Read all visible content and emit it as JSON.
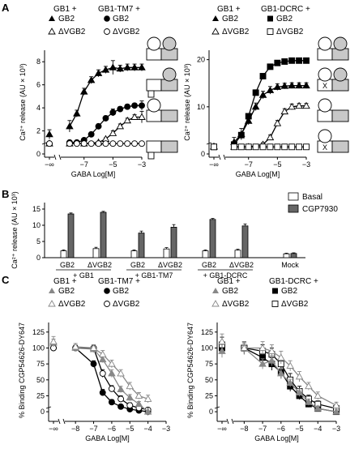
{
  "panels": {
    "A": {
      "letter": "A",
      "legends": [
        {
          "groups": [
            {
              "title": "GB1 +",
              "entries": [
                {
                  "marker": "filled-triangle",
                  "label": "GB2"
                },
                {
                  "marker": "open-triangle",
                  "label": "ΔVGB2"
                }
              ]
            },
            {
              "title": "GB1-TM7 +",
              "entries": [
                {
                  "marker": "filled-circle",
                  "label": "GB2"
                },
                {
                  "marker": "open-circle",
                  "label": "ΔVGB2"
                }
              ]
            }
          ]
        },
        {
          "groups": [
            {
              "title": "GB1 +",
              "entries": [
                {
                  "marker": "filled-triangle",
                  "label": "GB2"
                },
                {
                  "marker": "open-triangle",
                  "label": "ΔVGB2"
                }
              ]
            },
            {
              "title": "GB1-DCRC +",
              "entries": [
                {
                  "marker": "filled-square",
                  "label": "GB2"
                },
                {
                  "marker": "open-square",
                  "label": "ΔVGB2"
                }
              ]
            }
          ]
        }
      ]
    },
    "B": {
      "letter": "B",
      "legend": [
        {
          "label": "Basal",
          "color": "#ffffff"
        },
        {
          "label": "CGP7930",
          "color": "#666666"
        }
      ],
      "group_captions": [
        "+ GB1",
        "+ GB1-TM7",
        "+ GB1-DCRC"
      ]
    },
    "C": {
      "letter": "C",
      "legends": [
        {
          "groups": [
            {
              "title": "GB1 +",
              "entries": [
                {
                  "marker": "gray-filled-triangle",
                  "label": "GB2"
                },
                {
                  "marker": "gray-open-triangle",
                  "label": "ΔVGB2"
                }
              ]
            },
            {
              "title": "GB1-TM7 +",
              "entries": [
                {
                  "marker": "filled-circle",
                  "label": "GB2"
                },
                {
                  "marker": "open-circle",
                  "label": "ΔVGB2"
                }
              ]
            }
          ]
        },
        {
          "groups": [
            {
              "title": "GB1 +",
              "entries": [
                {
                  "marker": "gray-filled-triangle",
                  "label": "GB2"
                },
                {
                  "marker": "gray-open-triangle",
                  "label": "ΔVGB2"
                }
              ]
            },
            {
              "title": "GB1-DCRC +",
              "entries": [
                {
                  "marker": "filled-square",
                  "label": "GB2"
                },
                {
                  "marker": "open-square",
                  "label": "ΔVGB2"
                }
              ]
            }
          ]
        }
      ]
    }
  },
  "chart_data": [
    {
      "id": "A-left",
      "type": "line",
      "ylabel": "Ca²⁺ release (AU × 10³)",
      "xlabel": "GABA Log[M]",
      "x_ticks": [
        "−∞",
        "−7",
        "−5",
        "−3"
      ],
      "y_ticks": [
        0,
        2,
        4,
        6,
        8
      ],
      "xlim": [
        -8.5,
        -3
      ],
      "ylim": [
        0,
        9
      ],
      "grid": false,
      "series": [
        {
          "marker": "filled-triangle",
          "x": [
            -9,
            -8,
            -7.5,
            -7,
            -6.5,
            -6,
            -5.5,
            -5,
            -4.5,
            -4,
            -3.5,
            -3
          ],
          "y": [
            1.7,
            2.4,
            3.5,
            5.4,
            6.4,
            7.0,
            7.3,
            7.5,
            7.4,
            7.5,
            7.5,
            7.5
          ],
          "err": [
            0.4,
            0.5,
            0.3,
            0.3,
            0.3,
            0.3,
            0.3,
            0.6,
            0.3,
            0.3,
            0.3,
            0.3
          ]
        },
        {
          "marker": "filled-circle",
          "x": [
            -9,
            -8,
            -7.5,
            -7,
            -6.5,
            -6,
            -5.5,
            -5,
            -4.5,
            -4,
            -3.5,
            -3
          ],
          "y": [
            0.9,
            1.0,
            1.0,
            1.2,
            1.7,
            2.4,
            3.1,
            3.6,
            3.9,
            4.1,
            4.2,
            4.2
          ],
          "err": [
            0.1,
            0.1,
            0.1,
            0.1,
            0.2,
            0.2,
            0.2,
            0.3,
            0.2,
            0.2,
            0.2,
            0.4
          ]
        },
        {
          "marker": "open-triangle",
          "x": [
            -9,
            -8,
            -7,
            -6,
            -5.5,
            -5,
            -4.5,
            -4,
            -3.5,
            -3
          ],
          "y": [
            0.9,
            0.9,
            0.9,
            1.0,
            1.3,
            1.8,
            2.4,
            2.9,
            3.2,
            3.2
          ],
          "err": [
            0.1,
            0.1,
            0.1,
            0.1,
            0.1,
            0.2,
            0.2,
            0.2,
            0.2,
            0.5
          ]
        },
        {
          "marker": "open-circle",
          "x": [
            -9,
            -8,
            -7.5,
            -7,
            -6.5,
            -6,
            -5.5,
            -5,
            -4.5,
            -4,
            -3.5,
            -3
          ],
          "y": [
            0.9,
            0.9,
            0.9,
            0.9,
            0.9,
            0.9,
            0.9,
            0.9,
            0.9,
            0.9,
            0.9,
            0.9
          ],
          "err": [
            0.1,
            0.1,
            0.1,
            0.1,
            0.1,
            0.1,
            0.1,
            0.1,
            0.1,
            0.1,
            0.1,
            0.1
          ]
        }
      ]
    },
    {
      "id": "A-right",
      "type": "line",
      "ylabel": "Ca²⁺ release (AU × 10³)",
      "xlabel": "GABA Log[M]",
      "x_ticks": [
        "−∞",
        "−7",
        "−5",
        "−3"
      ],
      "y_ticks": [
        0,
        10,
        20
      ],
      "xlim": [
        -8.5,
        -3
      ],
      "ylim": [
        0,
        22
      ],
      "grid": false,
      "series": [
        {
          "marker": "filled-square",
          "x": [
            -9,
            -8,
            -7.5,
            -7,
            -6.5,
            -6,
            -5.5,
            -5,
            -4.5,
            -4,
            -3.5,
            -3
          ],
          "y": [
            1.5,
            2.0,
            4.0,
            8.0,
            13.0,
            16.5,
            18.5,
            19.3,
            19.6,
            19.8,
            19.8,
            19.8
          ],
          "err": [
            0.4,
            0.4,
            0.5,
            0.6,
            0.6,
            0.5,
            0.5,
            0.5,
            0.5,
            0.5,
            0.5,
            0.5
          ]
        },
        {
          "marker": "filled-triangle",
          "x": [
            -9,
            -8,
            -7.5,
            -7,
            -6.5,
            -6,
            -5.5,
            -5,
            -4.5,
            -4,
            -3.5,
            -3
          ],
          "y": [
            1.6,
            2.5,
            4.2,
            7.0,
            10.0,
            12.5,
            13.5,
            14.2,
            14.4,
            14.5,
            14.5,
            14.5
          ],
          "err": [
            0.4,
            1.0,
            1.2,
            0.8,
            0.8,
            0.8,
            0.8,
            0.7,
            0.6,
            0.6,
            0.6,
            0.6
          ]
        },
        {
          "marker": "open-triangle",
          "x": [
            -9,
            -8,
            -7,
            -6,
            -5.5,
            -5,
            -4.5,
            -4,
            -3.5,
            -3
          ],
          "y": [
            1.5,
            1.5,
            1.5,
            2.0,
            3.5,
            6.5,
            9.0,
            10.0,
            10.2,
            10.2
          ],
          "err": [
            0.3,
            0.3,
            0.3,
            0.4,
            0.5,
            0.6,
            0.6,
            0.6,
            0.5,
            0.5
          ]
        },
        {
          "marker": "open-square",
          "x": [
            -9,
            -8,
            -7.5,
            -7,
            -6.5,
            -6,
            -5.5,
            -5,
            -4.5,
            -4,
            -3.5,
            -3
          ],
          "y": [
            1.5,
            1.5,
            1.5,
            1.5,
            1.5,
            1.5,
            1.5,
            1.5,
            1.5,
            1.5,
            1.5,
            1.5
          ],
          "err": [
            0.2,
            0.2,
            0.2,
            0.2,
            0.2,
            0.2,
            0.2,
            0.2,
            0.2,
            0.2,
            0.2,
            0.2
          ]
        }
      ]
    },
    {
      "id": "B",
      "type": "bar",
      "ylabel": "Ca²⁺ release (AU × 10³)",
      "y_ticks": [
        0,
        5,
        10,
        15
      ],
      "ylim": [
        0,
        17
      ],
      "grid": false,
      "categories": [
        "GB2",
        "ΔVGB2",
        "GB2",
        "ΔVGB2",
        "GB2",
        "ΔVGB2",
        "Mock"
      ],
      "series": [
        {
          "name": "Basal",
          "values": [
            2.1,
            2.8,
            2.1,
            2.7,
            2.1,
            2.3,
            1.2
          ],
          "err": [
            0.3,
            0.4,
            0.3,
            0.4,
            0.3,
            0.3,
            0.2
          ]
        },
        {
          "name": "CGP7930",
          "values": [
            13.5,
            14.0,
            7.6,
            9.4,
            11.8,
            9.8,
            1.3
          ],
          "err": [
            0.3,
            0.3,
            0.6,
            0.8,
            0.3,
            0.6,
            0.2
          ]
        }
      ]
    },
    {
      "id": "C-left",
      "type": "line",
      "ylabel": "% Binding CGP54626-DY647",
      "xlabel": "GABA Log[M]",
      "x_ticks": [
        "−∞",
        "−8",
        "−7",
        "−6",
        "−5",
        "−4",
        "−3"
      ],
      "y_ticks": [
        0,
        25,
        50,
        75,
        100,
        125
      ],
      "xlim": [
        -8.5,
        -3
      ],
      "ylim": [
        -10,
        140
      ],
      "grid": false,
      "series": [
        {
          "marker": "filled-circle",
          "x": [
            -9,
            -8,
            -7,
            -6.5,
            -6,
            -5.5,
            -5,
            -4.5,
            -4
          ],
          "y": [
            100,
            100,
            75,
            30,
            15,
            8,
            4,
            2,
            0
          ],
          "err": [
            5,
            4,
            5,
            5,
            4,
            3,
            3,
            3,
            3
          ]
        },
        {
          "marker": "open-circle",
          "x": [
            -9,
            -8,
            -7,
            -6.5,
            -6,
            -5.5,
            -5,
            -4.5,
            -4
          ],
          "y": [
            100,
            100,
            100,
            60,
            36,
            20,
            10,
            6,
            3
          ],
          "err": [
            5,
            4,
            5,
            6,
            5,
            5,
            4,
            3,
            3
          ]
        },
        {
          "marker": "gray-filled-triangle",
          "x": [
            -9,
            -8,
            -7,
            -6.5,
            -6,
            -5.5,
            -5,
            -4.5,
            -4
          ],
          "y": [
            108,
            100,
            98,
            82,
            60,
            35,
            22,
            12,
            0
          ],
          "err": [
            6,
            5,
            5,
            5,
            6,
            5,
            5,
            4,
            6
          ]
        },
        {
          "marker": "gray-open-triangle",
          "x": [
            -9,
            -8,
            -7,
            -6.5,
            -6,
            -5.5,
            -5,
            -4.5,
            -4
          ],
          "y": [
            110,
            102,
            100,
            90,
            75,
            60,
            40,
            25,
            20
          ],
          "err": [
            8,
            5,
            5,
            6,
            6,
            6,
            6,
            5,
            6
          ]
        }
      ]
    },
    {
      "id": "C-right",
      "type": "line",
      "ylabel": "% Binding CGP54626-DY647",
      "xlabel": "GABA Log[M]",
      "x_ticks": [
        "−∞",
        "−8",
        "−7",
        "−6",
        "−5",
        "−4",
        "−3"
      ],
      "y_ticks": [
        0,
        25,
        50,
        75,
        100,
        125
      ],
      "xlim": [
        -8.5,
        -3
      ],
      "ylim": [
        -10,
        140
      ],
      "grid": false,
      "series": [
        {
          "marker": "filled-square",
          "x": [
            -9,
            -8,
            -7,
            -6.5,
            -6,
            -5.5,
            -5,
            -4.5,
            -4,
            -3
          ],
          "y": [
            100,
            100,
            85,
            75,
            62,
            40,
            25,
            12,
            5,
            0
          ],
          "err": [
            10,
            8,
            10,
            10,
            10,
            8,
            6,
            5,
            4,
            4
          ]
        },
        {
          "marker": "open-square",
          "x": [
            -9,
            -8,
            -7,
            -6.5,
            -6,
            -5.5,
            -5,
            -4.5,
            -4,
            -3
          ],
          "y": [
            105,
            100,
            95,
            90,
            75,
            50,
            32,
            20,
            12,
            5
          ],
          "err": [
            12,
            10,
            10,
            10,
            10,
            10,
            8,
            6,
            5,
            4
          ]
        },
        {
          "marker": "gray-filled-triangle",
          "x": [
            -9,
            -8,
            -7,
            -6.5,
            -6,
            -5.5,
            -5,
            -4.5,
            -4,
            -3
          ],
          "y": [
            95,
            100,
            75,
            80,
            60,
            45,
            30,
            15,
            5,
            0
          ],
          "err": [
            10,
            8,
            8,
            8,
            8,
            6,
            6,
            5,
            4,
            4
          ]
        },
        {
          "marker": "gray-open-triangle",
          "x": [
            -9,
            -8,
            -7,
            -6.5,
            -6,
            -5.5,
            -5,
            -4.5,
            -4,
            -3
          ],
          "y": [
            110,
            100,
            100,
            95,
            85,
            72,
            55,
            40,
            25,
            10
          ],
          "err": [
            12,
            10,
            10,
            10,
            10,
            8,
            8,
            6,
            6,
            5
          ]
        }
      ]
    }
  ]
}
